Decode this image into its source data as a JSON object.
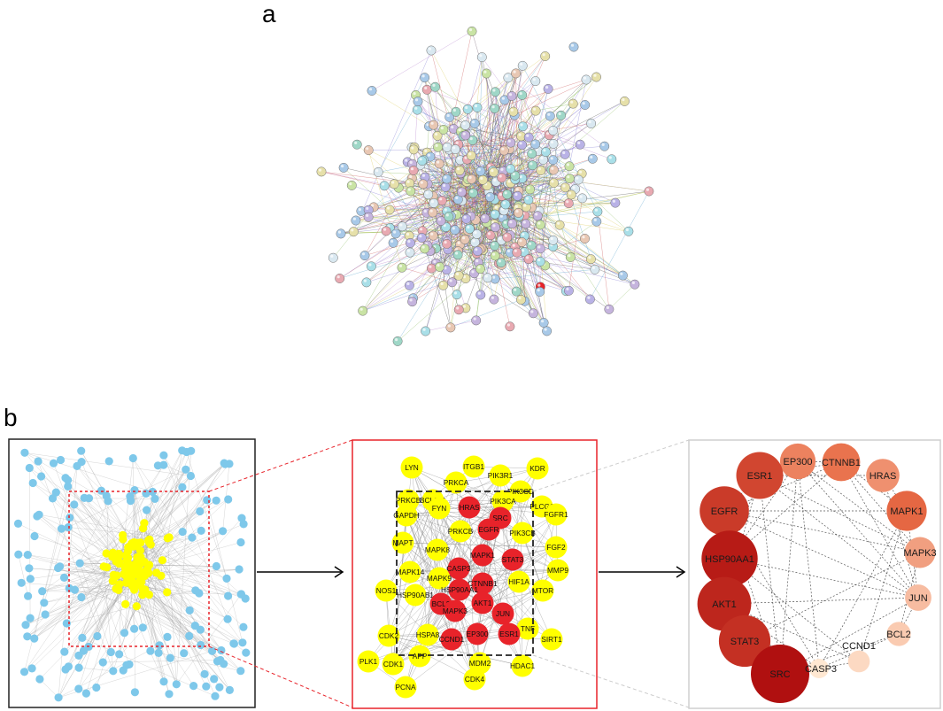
{
  "panel_a": {
    "letter": "a",
    "node_count": 330
  },
  "panel_b": {
    "letter": "b",
    "box1": {
      "node_count_blue": 150,
      "node_count_yellow": 90
    },
    "box2": {
      "nodes": [
        {
          "label": "LYN",
          "highlight": false
        },
        {
          "label": "ITGB1",
          "highlight": false
        },
        {
          "label": "PIK3R1",
          "highlight": false
        },
        {
          "label": "KDR",
          "highlight": false
        },
        {
          "label": "PRKCA",
          "highlight": false
        },
        {
          "label": "PIK3CD",
          "highlight": false
        },
        {
          "label": "PRKCB",
          "highlight": false
        },
        {
          "label": "BCL2L1",
          "highlight": false
        },
        {
          "label": "FYN",
          "highlight": false
        },
        {
          "label": "PIK3CA",
          "highlight": false
        },
        {
          "label": "PLCG1",
          "highlight": false
        },
        {
          "label": "GAPDH",
          "highlight": false
        },
        {
          "label": "HRAS",
          "highlight": true
        },
        {
          "label": "SRC",
          "highlight": true
        },
        {
          "label": "FGFR1",
          "highlight": false
        },
        {
          "label": "EGFR",
          "highlight": true
        },
        {
          "label": "PRKCB",
          "highlight": false
        },
        {
          "label": "PIK3CB",
          "highlight": false
        },
        {
          "label": "MAPT",
          "highlight": false
        },
        {
          "label": "FGF2",
          "highlight": false
        },
        {
          "label": "MAPK8",
          "highlight": false
        },
        {
          "label": "MAPK1",
          "highlight": true
        },
        {
          "label": "STAT3",
          "highlight": true
        },
        {
          "label": "MMP9",
          "highlight": false
        },
        {
          "label": "CASP3",
          "highlight": true
        },
        {
          "label": "MAPK14",
          "highlight": false
        },
        {
          "label": "MAPK9",
          "highlight": false
        },
        {
          "label": "CTNNB1",
          "highlight": true
        },
        {
          "label": "HIF1A",
          "highlight": false
        },
        {
          "label": "NOS1",
          "highlight": false
        },
        {
          "label": "HSP90AA1",
          "highlight": true
        },
        {
          "label": "MTOR",
          "highlight": false
        },
        {
          "label": "HSP90AB1",
          "highlight": false
        },
        {
          "label": "BCL2",
          "highlight": true
        },
        {
          "label": "AKT1",
          "highlight": true
        },
        {
          "label": "MAPK3",
          "highlight": true
        },
        {
          "label": "JUN",
          "highlight": true
        },
        {
          "label": "CDK2",
          "highlight": false
        },
        {
          "label": "HSPA8",
          "highlight": false
        },
        {
          "label": "TNF",
          "highlight": false
        },
        {
          "label": "CCND1",
          "highlight": true
        },
        {
          "label": "EP300",
          "highlight": true
        },
        {
          "label": "ESR1",
          "highlight": true
        },
        {
          "label": "SIRT1",
          "highlight": false
        },
        {
          "label": "PLK1",
          "highlight": false
        },
        {
          "label": "CDK1",
          "highlight": false
        },
        {
          "label": "APP",
          "highlight": false
        },
        {
          "label": "MDM2",
          "highlight": false
        },
        {
          "label": "HDAC1",
          "highlight": false
        },
        {
          "label": "CDK4",
          "highlight": false
        },
        {
          "label": "PCNA",
          "highlight": false
        }
      ]
    },
    "box3": {
      "nodes": [
        {
          "label": "EP300",
          "rank": 11
        },
        {
          "label": "CTNNB1",
          "rank": 10
        },
        {
          "label": "HRAS",
          "rank": 12
        },
        {
          "label": "ESR1",
          "rank": 6
        },
        {
          "label": "MAPK1",
          "rank": 9
        },
        {
          "label": "EGFR",
          "rank": 5
        },
        {
          "label": "MAPK3",
          "rank": 13
        },
        {
          "label": "HSP90AA1",
          "rank": 2
        },
        {
          "label": "JUN",
          "rank": 15
        },
        {
          "label": "AKT1",
          "rank": 3
        },
        {
          "label": "BCL2",
          "rank": 16
        },
        {
          "label": "STAT3",
          "rank": 4
        },
        {
          "label": "CCND1",
          "rank": 17
        },
        {
          "label": "SRC",
          "rank": 1
        },
        {
          "label": "CASP3",
          "rank": 18
        }
      ]
    }
  },
  "colors": {
    "blue_node": "#7ec8ea",
    "yellow_node": "#ffff00",
    "red_node": "#e8232a",
    "red_border": "#e8232a",
    "string_palette": [
      "#b9b2e6",
      "#9fd7c7",
      "#c9e3a4",
      "#e8c7b3",
      "#d9e8f0",
      "#c5b4dd",
      "#a8c9e8",
      "#e6e0a9",
      "#e8a9b1",
      "#a9dfe8"
    ]
  }
}
